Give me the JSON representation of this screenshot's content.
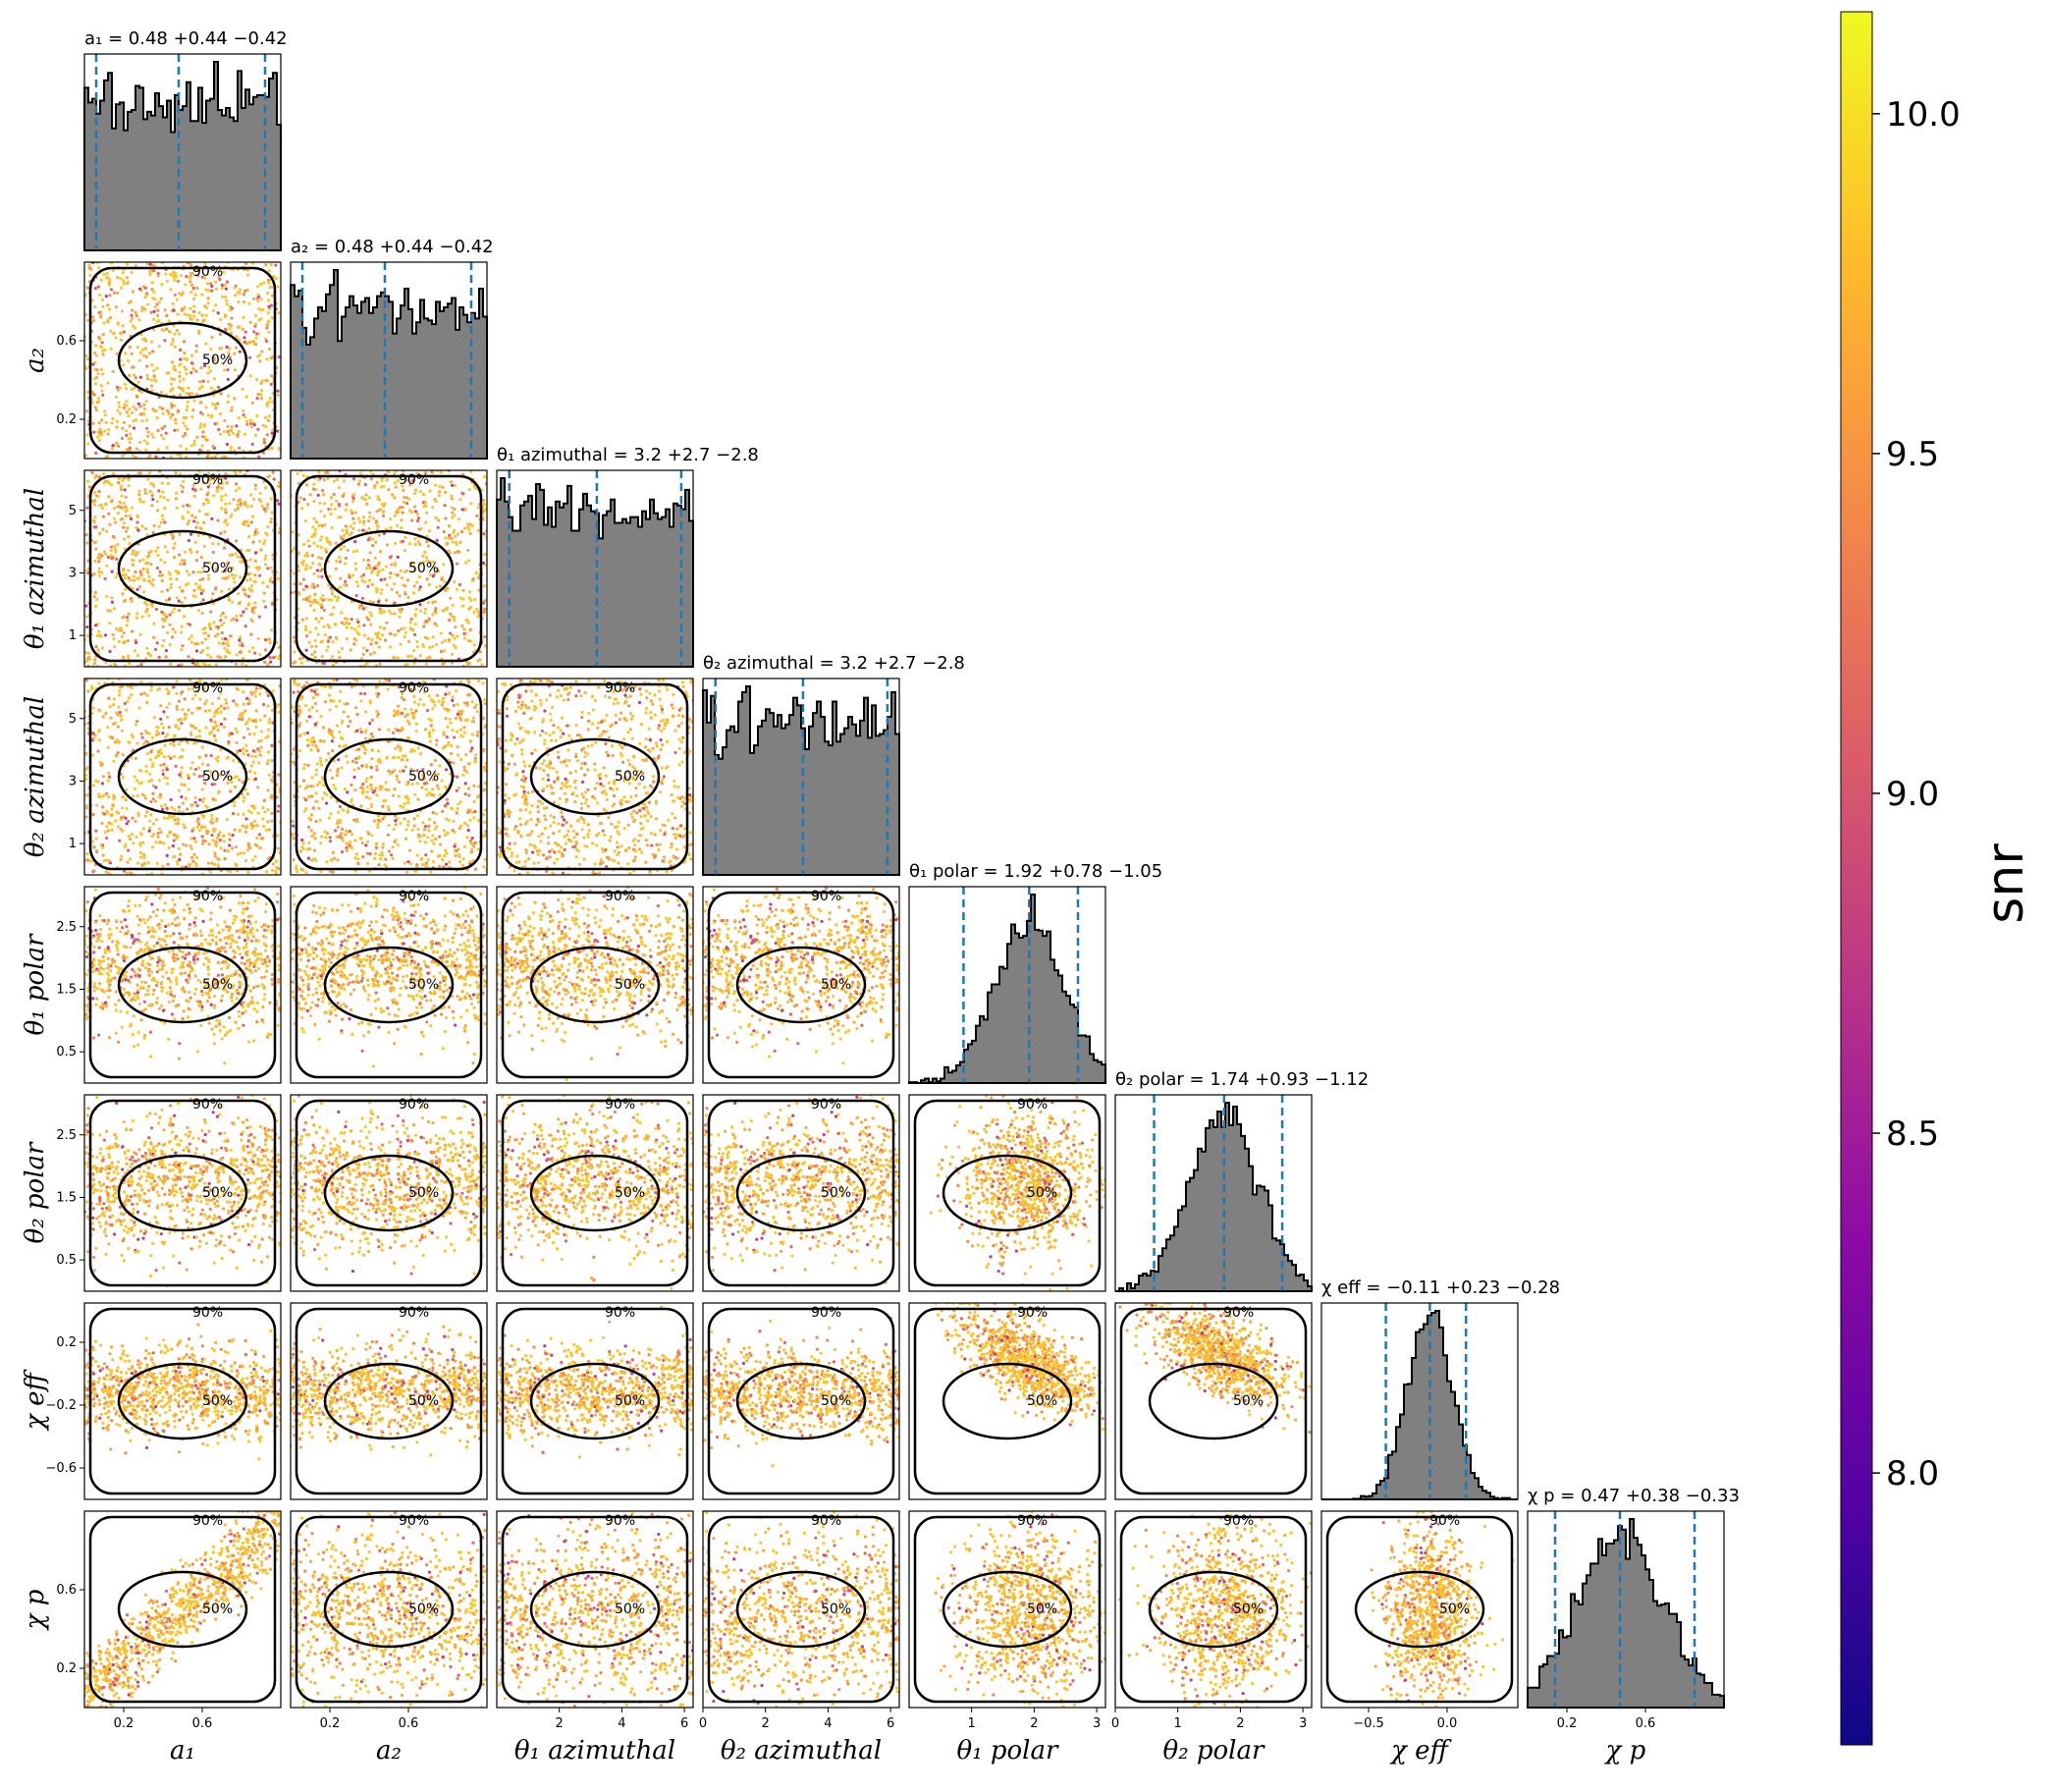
{
  "chart_data": {
    "type": "corner",
    "parameters": [
      {
        "key": "a1",
        "label": "a₁",
        "range": [
          0.0,
          1.0
        ],
        "ticks": [
          0.2,
          0.6
        ],
        "tick_labels": [
          "0.2",
          "0.6"
        ],
        "title": "a₁ = 0.48 +0.44 −0.42",
        "median": 0.48,
        "lo": 0.06,
        "hi": 0.92,
        "shape": "uniform"
      },
      {
        "key": "a2",
        "label": "a₂",
        "range": [
          0.0,
          1.0
        ],
        "ticks": [
          0.2,
          0.6
        ],
        "tick_labels": [
          "0.2",
          "0.6"
        ],
        "title": "a₂ = 0.48 +0.44 −0.42",
        "median": 0.48,
        "lo": 0.06,
        "hi": 0.92,
        "shape": "uniform"
      },
      {
        "key": "theta1_az",
        "label": "θ₁ azimuthal",
        "range": [
          0.0,
          6.28
        ],
        "ticks": [
          1,
          3,
          5
        ],
        "tick_labels": [
          "1",
          "3",
          "5"
        ],
        "xticks": [
          2,
          4,
          6
        ],
        "xtick_labels": [
          "2",
          "4",
          "6"
        ],
        "title": "θ₁ azimuthal = 3.2 +2.7 −2.8",
        "median": 3.2,
        "lo": 0.4,
        "hi": 5.9,
        "shape": "uniform"
      },
      {
        "key": "theta2_az",
        "label": "θ₂ azimuthal",
        "range": [
          0.0,
          6.28
        ],
        "ticks": [
          1,
          3,
          5
        ],
        "tick_labels": [
          "1",
          "3",
          "5"
        ],
        "xticks": [
          0,
          2,
          4,
          6
        ],
        "xtick_labels": [
          "0",
          "2",
          "4",
          "6"
        ],
        "title": "θ₂ azimuthal = 3.2 +2.7 −2.8",
        "median": 3.2,
        "lo": 0.4,
        "hi": 5.9,
        "shape": "uniform"
      },
      {
        "key": "theta1_pol",
        "label": "θ₁ polar",
        "range": [
          0.0,
          3.14
        ],
        "ticks": [
          0.5,
          1.5,
          2.5
        ],
        "tick_labels": [
          "0.5",
          "1.5",
          "2.5"
        ],
        "xticks": [
          1,
          2,
          3
        ],
        "xtick_labels": [
          "1",
          "2",
          "3"
        ],
        "title": "θ₁ polar = 1.92 +0.78 −1.05",
        "median": 1.92,
        "lo": 0.87,
        "hi": 2.7,
        "shape": "skew"
      },
      {
        "key": "theta2_pol",
        "label": "θ₂ polar",
        "range": [
          0.0,
          3.14
        ],
        "ticks": [
          0.5,
          1.5,
          2.5
        ],
        "tick_labels": [
          "0.5",
          "1.5",
          "2.5"
        ],
        "xticks": [
          0,
          1,
          2,
          3
        ],
        "xtick_labels": [
          "0",
          "1",
          "2",
          "3"
        ],
        "title": "θ₂ polar = 1.74 +0.93 −1.12",
        "median": 1.74,
        "lo": 0.62,
        "hi": 2.67,
        "shape": "skew"
      },
      {
        "key": "chi_eff",
        "label": "χ eff",
        "range": [
          -0.8,
          0.45
        ],
        "ticks": [
          0.2,
          -0.2,
          -0.6
        ],
        "tick_labels": [
          "0.2",
          "−0.2",
          "−0.6"
        ],
        "xticks": [
          -0.5,
          0.0
        ],
        "xtick_labels": [
          "−0.5",
          "0.0"
        ],
        "title": "χ eff = −0.11 +0.23 −0.28",
        "median": -0.11,
        "lo": -0.39,
        "hi": 0.12,
        "shape": "peaked"
      },
      {
        "key": "chi_p",
        "label": "χ p",
        "range": [
          0.0,
          1.0
        ],
        "ticks": [
          0.2,
          0.6
        ],
        "tick_labels": [
          "0.2",
          "0.6"
        ],
        "title": "χ p = 0.47 +0.38 −0.33",
        "median": 0.47,
        "lo": 0.14,
        "hi": 0.85,
        "shape": "broad"
      }
    ],
    "contour_levels": [
      "50%",
      "90%"
    ],
    "colorbar": {
      "label": "snr",
      "range": [
        7.6,
        10.15
      ],
      "ticks": [
        8.0,
        8.5,
        9.0,
        9.5,
        10.0
      ],
      "tick_labels": [
        "8.0",
        "8.5",
        "9.0",
        "9.5",
        "10.0"
      ],
      "colormap": "plasma"
    },
    "colors": {
      "hist_fill": "#808080",
      "quantile_line": "#1f77b4",
      "contour": "#000000"
    }
  }
}
